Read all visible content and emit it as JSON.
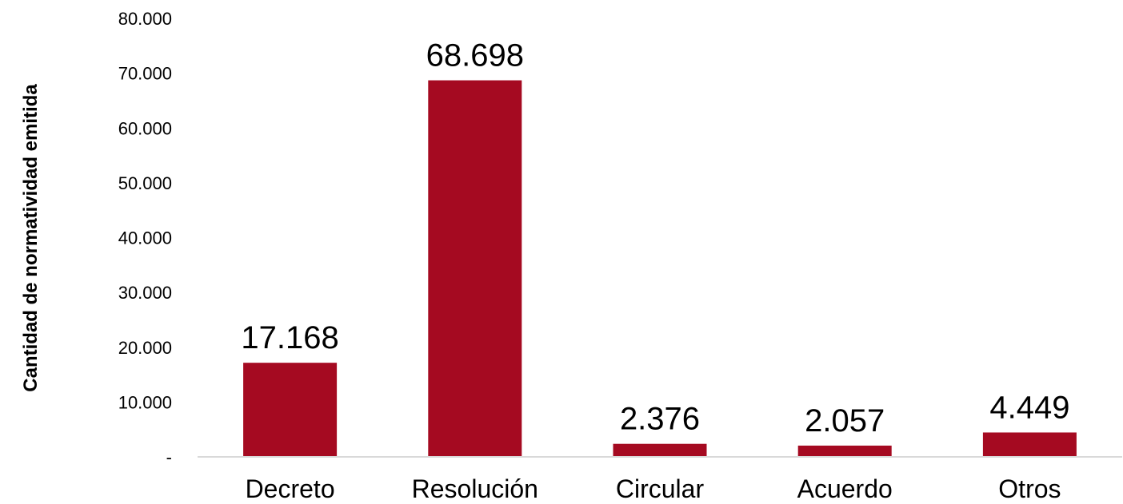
{
  "chart_data": {
    "type": "bar",
    "categories": [
      "Decreto",
      "Resolución",
      "Circular",
      "Acuerdo",
      "Otros"
    ],
    "values": [
      17168,
      68698,
      2376,
      2057,
      4449
    ],
    "data_labels": [
      "17.168",
      "68.698",
      "2.376",
      "2.057",
      "4.449"
    ],
    "title": "",
    "xlabel": "",
    "ylabel": "Cantidad de normatividad emitida",
    "ylim": [
      0,
      80000
    ],
    "y_ticks": [
      0,
      10000,
      20000,
      30000,
      40000,
      50000,
      60000,
      70000,
      80000
    ],
    "y_tick_labels": [
      "-",
      "10.000",
      "20.000",
      "30.000",
      "40.000",
      "50.000",
      "60.000",
      "70.000",
      "80.000"
    ],
    "grid": false,
    "legend": "none",
    "bar_color": "#A50A21",
    "axis_color": "#D9D9D9"
  }
}
